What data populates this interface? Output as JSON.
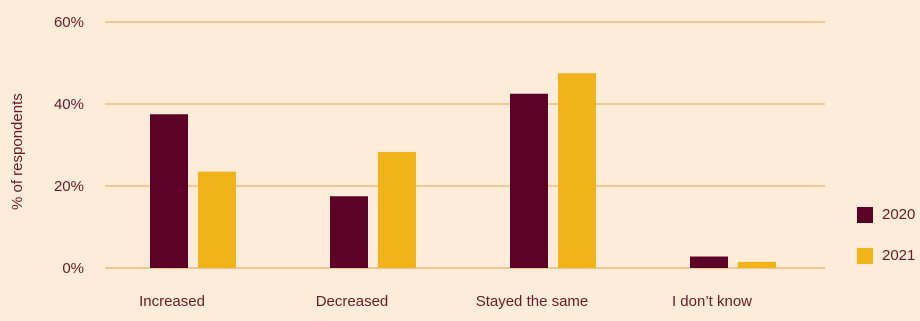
{
  "chart_data": {
    "type": "bar",
    "title": "",
    "xlabel": "",
    "ylabel": "% of respondents",
    "categories": [
      "Increased",
      "Decreased",
      "Stayed the same",
      "I don’t know"
    ],
    "series": [
      {
        "name": "2020",
        "values": [
          37.5,
          17.5,
          42.5,
          2.8
        ]
      },
      {
        "name": "2021",
        "values": [
          23.5,
          28.3,
          47.5,
          1.5
        ]
      }
    ],
    "ylim": [
      0,
      60
    ],
    "yticks": [
      0,
      20,
      40,
      60
    ],
    "ytick_labels": [
      "0%",
      "20%",
      "40%",
      "60%"
    ],
    "grid": true,
    "legend": "right",
    "colors": {
      "series": [
        "#5b0226",
        "#f0b31a"
      ],
      "grid": "#eaa24a",
      "background": "#fcecd9",
      "text": "#6a1a2a"
    }
  }
}
